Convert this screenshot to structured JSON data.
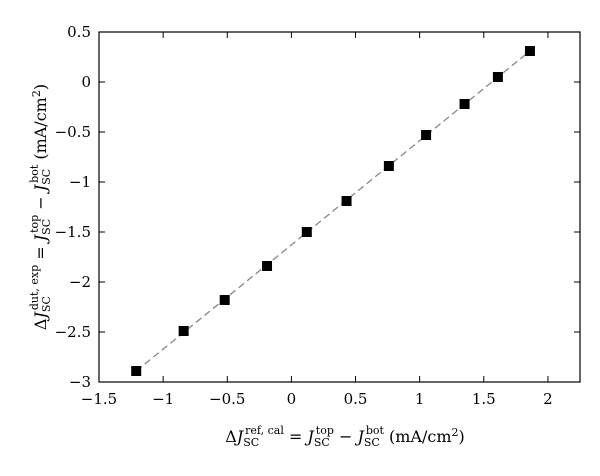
{
  "chart_data": {
    "type": "scatter",
    "title": "",
    "xlabel": "ΔJ_SC^{ref, cal} = J_SC^{top} − J_SC^{bot} (mA/cm^2)",
    "ylabel": "ΔJ_SC^{dut, exp} = J_SC^{top} − J_SC^{bot} (mA/cm^2)",
    "xlim": [
      -1.5,
      2.25
    ],
    "ylim": [
      -3,
      0.5
    ],
    "xticks": [
      -1.5,
      -1,
      -0.5,
      0,
      0.5,
      1,
      1.5,
      2
    ],
    "yticks": [
      -3,
      -2.5,
      -2,
      -1.5,
      -1,
      -0.5,
      0,
      0.5
    ],
    "grid": false,
    "legend": "none",
    "series": [
      {
        "marker": "square",
        "color": "#000000",
        "points": [
          {
            "x": -1.21,
            "y": -2.89
          },
          {
            "x": -0.84,
            "y": -2.49
          },
          {
            "x": -0.52,
            "y": -2.18
          },
          {
            "x": -0.19,
            "y": -1.84
          },
          {
            "x": 0.12,
            "y": -1.5
          },
          {
            "x": 0.43,
            "y": -1.19
          },
          {
            "x": 0.76,
            "y": -0.84
          },
          {
            "x": 1.05,
            "y": -0.53
          },
          {
            "x": 1.35,
            "y": -0.22
          },
          {
            "x": 1.61,
            "y": 0.05
          },
          {
            "x": 1.86,
            "y": 0.31
          }
        ]
      }
    ],
    "fit_line": {
      "style": "dashed",
      "color": "#888888",
      "from": {
        "x": -1.21,
        "y": -2.89
      },
      "to": {
        "x": 1.86,
        "y": 0.31
      }
    },
    "axis_text": {
      "x": {
        "delta": "Δ",
        "j1": "J",
        "j1_sub": "SC",
        "j1_sup": "ref, cal",
        "eq": " = ",
        "j2": "J",
        "j2_sub": "SC",
        "j2_sup": "top",
        "minus": " − ",
        "j3": "J",
        "j3_sub": "SC",
        "j3_sup": "bot",
        "units": " (mA/cm",
        "units_sup": "2",
        "units_close": ")"
      },
      "y": {
        "delta": "Δ",
        "j1": "J",
        "j1_sub": "SC",
        "j1_sup": "dut, exp",
        "eq": " = ",
        "j2": "J",
        "j2_sub": "SC",
        "j2_sup": "top",
        "minus": " − ",
        "j3": "J",
        "j3_sub": "SC",
        "j3_sup": "bot",
        "units": " (mA/cm",
        "units_sup": "2",
        "units_close": ")"
      }
    }
  }
}
